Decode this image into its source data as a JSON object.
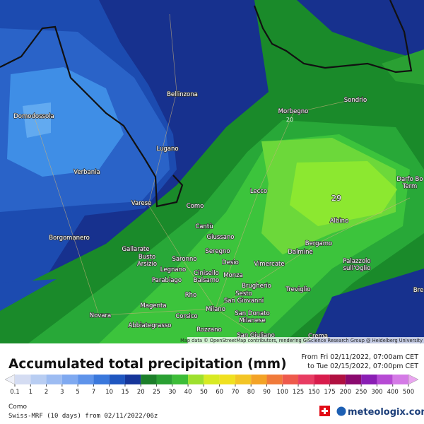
{
  "map": {
    "places": [
      "Domodossola",
      "Bellinzona",
      "Morbegno",
      "Sondrio",
      "Lugano",
      "Verbania",
      "Darfo Bo",
      "Term",
      "Lecco",
      "Varese",
      "Como",
      "Cantù",
      "Albino",
      "Giussano",
      "Bergamo",
      "Gallarate",
      "Seregno",
      "Dalmine",
      "Busto",
      "Arsizio",
      "Saronno",
      "Desio",
      "Vimercate",
      "Palazzolo",
      "sull'Oglio",
      "Legnano",
      "Cinisello",
      "Balsamo",
      "Monza",
      "Parabiago",
      "Brugherio",
      "Rho",
      "Sesto",
      "San Giovanni",
      "Treviglio",
      "Magenta",
      "Milano",
      "San Donato",
      "Milanese",
      "Novara",
      "Corsico",
      "Abbiategrasso",
      "Rozzano",
      "Borgomanero",
      "San Giuliano",
      "Crema",
      "Bre"
    ],
    "annotations": [
      "29",
      "20"
    ],
    "attribution": "Map data © OpenStreetMap contributors, rendering GIScience Research Group @ Heidelberg University"
  },
  "legend": {
    "title": "Accumulated total precipitation (mm)",
    "ticks": [
      0.1,
      1,
      2,
      3,
      5,
      7,
      10,
      15,
      20,
      25,
      30,
      40,
      50,
      60,
      70,
      80,
      90,
      100,
      125,
      150,
      175,
      200,
      250,
      300,
      400,
      500
    ],
    "colors": [
      "#eef0f8",
      "#d4dcf2",
      "#b8cdf2",
      "#9dbcf2",
      "#7fa9f0",
      "#5e93ea",
      "#3a78dc",
      "#1f56c0",
      "#16369a",
      "#1c7f2a",
      "#2aa033",
      "#3dbd38",
      "#9ee02e",
      "#d8ea24",
      "#f0e020",
      "#f3c526",
      "#f3a326",
      "#f07a3a",
      "#ee5a4c",
      "#e83c62",
      "#d81c4c",
      "#b01040",
      "#8a0a6e",
      "#8a1eb4",
      "#b64ad4",
      "#d47ae6",
      "#eaa6f0",
      "#c8c8c8"
    ]
  },
  "period": {
    "from": "From Fri 02/11/2022, 07:00am CET",
    "to": "to Tue 02/15/2022, 07:00pm CET"
  },
  "footer": {
    "location": "Como",
    "model": "Swiss-MRF (10 days) from 02/11/2022/06z",
    "brand": "meteologix.com"
  }
}
